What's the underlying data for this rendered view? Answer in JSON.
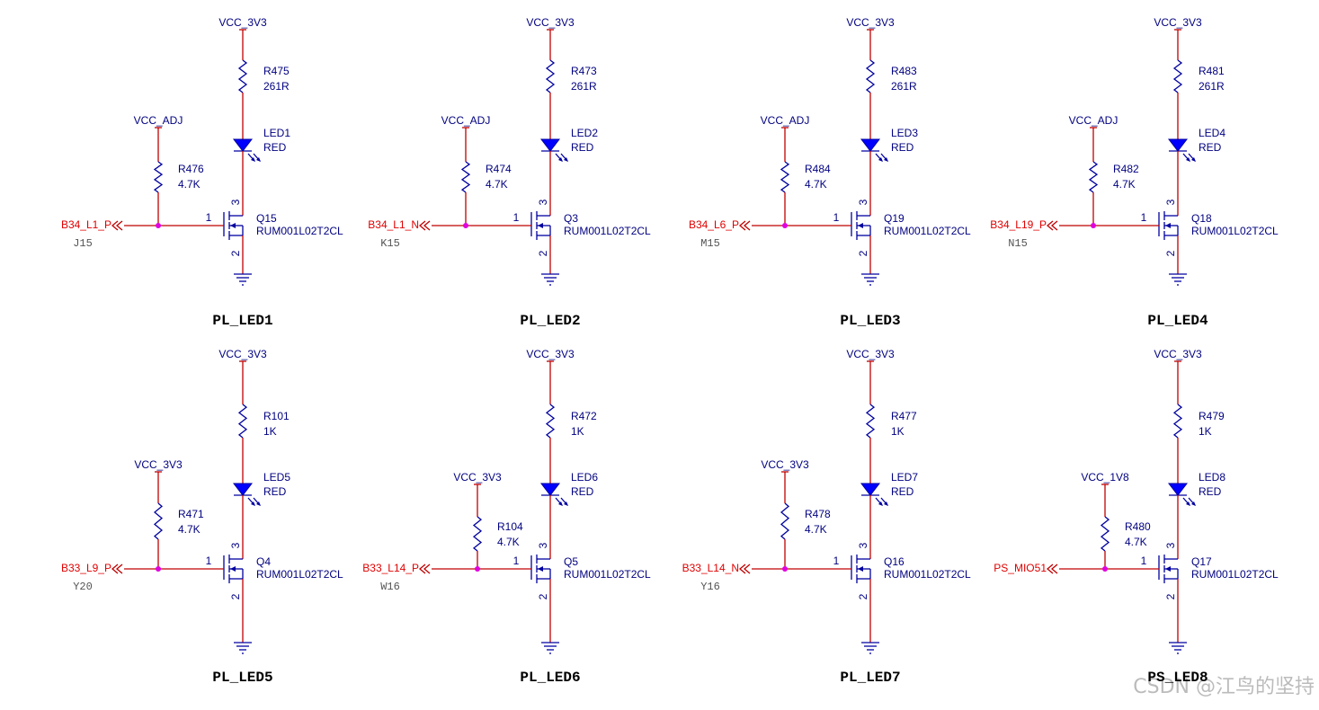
{
  "circuits": [
    {
      "supply": "VCC_3V3",
      "resistor": {
        "ref": "R475",
        "value": "261R"
      },
      "led": {
        "ref": "LED1",
        "color": "RED"
      },
      "pullup": {
        "supply": "VCC_ADJ",
        "ref": "R476",
        "value": "4.7K"
      },
      "net": "B34_L1_P",
      "pin": "J15",
      "transistor": {
        "ref": "Q15",
        "part": "RUM001L02T2CL",
        "pins": [
          "1",
          "3",
          "2"
        ]
      },
      "caption": "PL_LED1"
    },
    {
      "supply": "VCC_3V3",
      "resistor": {
        "ref": "R473",
        "value": "261R"
      },
      "led": {
        "ref": "LED2",
        "color": "RED"
      },
      "pullup": {
        "supply": "VCC_ADJ",
        "ref": "R474",
        "value": "4.7K"
      },
      "net": "B34_L1_N",
      "pin": "K15",
      "transistor": {
        "ref": "Q3",
        "part": "RUM001L02T2CL",
        "pins": [
          "1",
          "3",
          "2"
        ]
      },
      "caption": "PL_LED2"
    },
    {
      "supply": "VCC_3V3",
      "resistor": {
        "ref": "R483",
        "value": "261R"
      },
      "led": {
        "ref": "LED3",
        "color": "RED"
      },
      "pullup": {
        "supply": "VCC_ADJ",
        "ref": "R484",
        "value": "4.7K"
      },
      "net": "B34_L6_P",
      "pin": "M15",
      "transistor": {
        "ref": "Q19",
        "part": "RUM001L02T2CL",
        "pins": [
          "1",
          "3",
          "2"
        ]
      },
      "caption": "PL_LED3"
    },
    {
      "supply": "VCC_3V3",
      "resistor": {
        "ref": "R481",
        "value": "261R"
      },
      "led": {
        "ref": "LED4",
        "color": "RED"
      },
      "pullup": {
        "supply": "VCC_ADJ",
        "ref": "R482",
        "value": "4.7K"
      },
      "net": "B34_L19_P",
      "pin": "N15",
      "transistor": {
        "ref": "Q18",
        "part": "RUM001L02T2CL",
        "pins": [
          "1",
          "3",
          "2"
        ]
      },
      "caption": "PL_LED4"
    },
    {
      "supply": "VCC_3V3",
      "resistor": {
        "ref": "R101",
        "value": "1K"
      },
      "led": {
        "ref": "LED5",
        "color": "RED"
      },
      "pullup": {
        "supply": "VCC_3V3",
        "ref": "R471",
        "value": "4.7K"
      },
      "net": "B33_L9_P",
      "pin": "Y20",
      "transistor": {
        "ref": "Q4",
        "part": "RUM001L02T2CL",
        "pins": [
          "1",
          "3",
          "2"
        ]
      },
      "caption": "PL_LED5"
    },
    {
      "supply": "VCC_3V3",
      "resistor": {
        "ref": "R472",
        "value": "1K"
      },
      "led": {
        "ref": "LED6",
        "color": "RED"
      },
      "pullup": {
        "supply": "VCC_3V3",
        "ref": "R104",
        "value": "4.7K"
      },
      "net": "B33_L14_P",
      "pin": "W16",
      "transistor": {
        "ref": "Q5",
        "part": "RUM001L02T2CL",
        "pins": [
          "1",
          "3",
          "2"
        ]
      },
      "caption": "PL_LED6"
    },
    {
      "supply": "VCC_3V3",
      "resistor": {
        "ref": "R477",
        "value": "1K"
      },
      "led": {
        "ref": "LED7",
        "color": "RED"
      },
      "pullup": {
        "supply": "VCC_3V3",
        "ref": "R478",
        "value": "4.7K"
      },
      "net": "B33_L14_N",
      "pin": "Y16",
      "transistor": {
        "ref": "Q16",
        "part": "RUM001L02T2CL",
        "pins": [
          "1",
          "3",
          "2"
        ]
      },
      "caption": "PL_LED7"
    },
    {
      "supply": "VCC_3V3",
      "resistor": {
        "ref": "R479",
        "value": "1K"
      },
      "led": {
        "ref": "LED8",
        "color": "RED"
      },
      "pullup": {
        "supply": "VCC_1V8",
        "ref": "R480",
        "value": "4.7K"
      },
      "net": "PS_MIO51",
      "transistor": {
        "ref": "Q17",
        "part": "RUM001L02T2CL",
        "pins": [
          "1",
          "3",
          "2"
        ]
      },
      "caption": "PS_LED8"
    }
  ],
  "watermark": "CSDN @江鸟的坚持"
}
